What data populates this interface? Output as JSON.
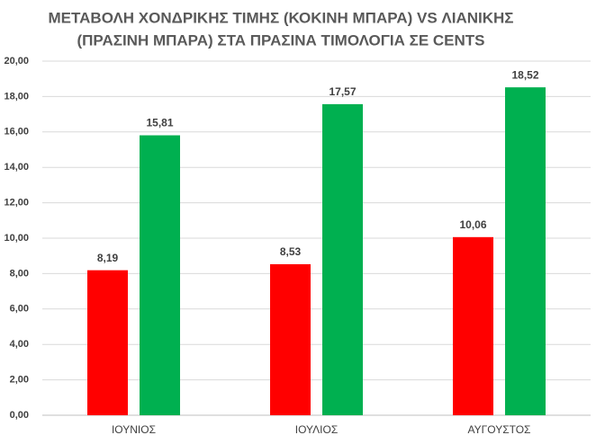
{
  "chart_data": {
    "type": "bar",
    "title": [
      "ΜΕΤΑΒΟΛΗ ΧΟΝΔΡΙΚΗΣ ΤΙΜΗΣ (ΚΟΚΙΝΗ ΜΠΑΡΑ) VS ΛΙΑΝΙΚΗΣ",
      "(ΠΡΑΣΙΝΗ ΜΠΑΡΑ) ΣΤΑ ΠΡΑΣΙΝΑ ΤΙΜΟΛΟΓΙΑ ΣΕ CENTS"
    ],
    "categories": [
      "ΙΟΥΝΙΟΣ",
      "ΙΟΥΛΙΟΣ",
      "ΑΥΓΟΥΣΤΟΣ"
    ],
    "series": [
      {
        "color": "#ff0000",
        "values": [
          8.19,
          8.53,
          10.06
        ],
        "value_labels": [
          "8,19",
          "8,53",
          "10,06"
        ]
      },
      {
        "color": "#00b050",
        "values": [
          15.81,
          17.57,
          18.52
        ],
        "value_labels": [
          "15,81",
          "17,57",
          "18,52"
        ]
      }
    ],
    "ylim": [
      0,
      20
    ],
    "yticks": [
      {
        "value": 0,
        "label": "0,00"
      },
      {
        "value": 2,
        "label": "2,00"
      },
      {
        "value": 4,
        "label": "4,00"
      },
      {
        "value": 6,
        "label": "6,00"
      },
      {
        "value": 8,
        "label": "8,00"
      },
      {
        "value": 10,
        "label": "10,00"
      },
      {
        "value": 12,
        "label": "12,00"
      },
      {
        "value": 14,
        "label": "14,00"
      },
      {
        "value": 16,
        "label": "16,00"
      },
      {
        "value": 18,
        "label": "18,00"
      },
      {
        "value": 20,
        "label": "20,00"
      }
    ],
    "grid": true
  }
}
